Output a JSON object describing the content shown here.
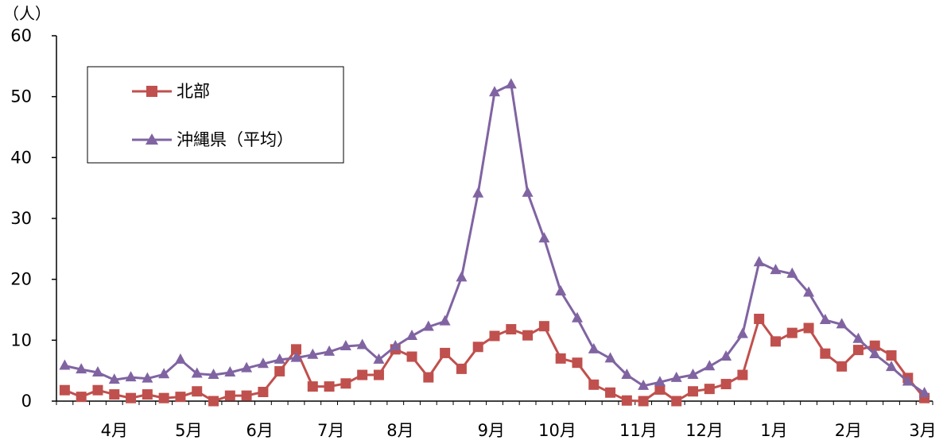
{
  "chart_data": {
    "type": "line",
    "ylabel": "（人）",
    "ylim": [
      0,
      60
    ],
    "yticks": [
      "0",
      "10",
      "20",
      "30",
      "40",
      "50",
      "60"
    ],
    "month_labels": [
      "4月",
      "5月",
      "6月",
      "7月",
      "8月",
      "9月",
      "10月",
      "11月",
      "12月",
      "1月",
      "2月",
      "3月"
    ],
    "legend_position": "top-left",
    "grid": false,
    "series": [
      {
        "name": "北部",
        "color": "#c0504d",
        "marker": "square",
        "values": [
          1.8,
          0.7,
          1.8,
          1.1,
          0.5,
          1.1,
          0.5,
          0.7,
          1.6,
          0.0,
          0.9,
          0.9,
          1.5,
          4.9,
          8.5,
          2.4,
          2.4,
          2.9,
          4.3,
          4.3,
          8.5,
          7.3,
          3.9,
          7.9,
          5.3,
          8.9,
          10.7,
          11.8,
          10.8,
          12.3,
          7.0,
          6.3,
          2.7,
          1.4,
          0.1,
          0.0,
          1.9,
          0.0,
          1.6,
          2.0,
          2.8,
          4.3,
          13.5,
          9.8,
          11.2,
          12.0,
          7.8,
          5.7,
          8.4,
          9.1,
          7.5,
          3.8,
          0.5
        ]
      },
      {
        "name": "沖縄県（平均）",
        "color": "#8064a2",
        "marker": "triangle",
        "values": [
          5.8,
          5.2,
          4.7,
          3.5,
          3.9,
          3.7,
          4.4,
          6.8,
          4.5,
          4.3,
          4.7,
          5.4,
          6.1,
          6.8,
          7.1,
          7.6,
          8.1,
          9.0,
          9.2,
          6.8,
          9.0,
          10.7,
          12.2,
          13.1,
          20.3,
          34.1,
          50.7,
          52.0,
          34.2,
          26.7,
          18.0,
          13.6,
          8.5,
          7.0,
          4.3,
          2.5,
          3.1,
          3.8,
          4.3,
          5.7,
          7.3,
          11.0,
          22.8,
          21.5,
          20.9,
          17.8,
          13.3,
          12.6,
          10.2,
          7.7,
          5.6,
          3.2,
          1.3
        ]
      }
    ]
  }
}
